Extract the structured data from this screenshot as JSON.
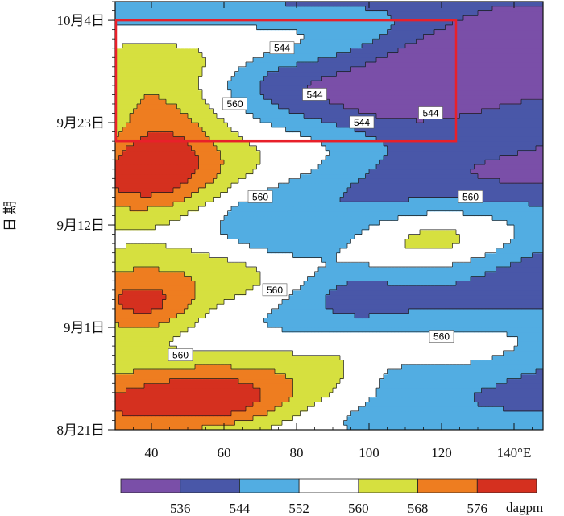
{
  "chart_data": {
    "type": "heatmap",
    "title": "",
    "xlabel": "",
    "ylabel": "日 期",
    "x_ticks": [
      {
        "value": 40,
        "label": "40"
      },
      {
        "value": 60,
        "label": "60"
      },
      {
        "value": 80,
        "label": "80"
      },
      {
        "value": 100,
        "label": "100"
      },
      {
        "value": 120,
        "label": "120"
      },
      {
        "value": 140,
        "label": "140°E"
      }
    ],
    "xlim": [
      30,
      148
    ],
    "y_ticks": [
      {
        "value": "08-21",
        "label": "8月21日"
      },
      {
        "value": "09-01",
        "label": "9月1日"
      },
      {
        "value": "09-12",
        "label": "9月12日"
      },
      {
        "value": "09-23",
        "label": "9月23日"
      },
      {
        "value": "10-04",
        "label": "10月4日"
      }
    ],
    "ylim": [
      "08-21",
      "10-06"
    ],
    "colorbar": {
      "unit": "dagpm",
      "levels": [
        528,
        536,
        544,
        552,
        560,
        568,
        576,
        584
      ],
      "tick_labels": [
        "536",
        "544",
        "552",
        "560",
        "568",
        "576"
      ],
      "colors": [
        "#7a4fa8",
        "#4957a8",
        "#52ade2",
        "#ffffff",
        "#d6e03f",
        "#ee7d20",
        "#d5301f"
      ]
    },
    "contour_labels": [
      {
        "lon": 98,
        "date": "09-23",
        "text": "544"
      },
      {
        "lon": 85,
        "date": "09-26",
        "text": "544"
      },
      {
        "lon": 76,
        "date": "10-01",
        "text": "544"
      },
      {
        "lon": 117,
        "date": "09-24",
        "text": "544"
      },
      {
        "lon": 63,
        "date": "09-25",
        "text": "560"
      },
      {
        "lon": 70,
        "date": "09-15",
        "text": "560"
      },
      {
        "lon": 128,
        "date": "09-15",
        "text": "560"
      },
      {
        "lon": 74,
        "date": "09-05",
        "text": "560"
      },
      {
        "lon": 120,
        "date": "08-31",
        "text": "560"
      },
      {
        "lon": 48,
        "date": "08-29",
        "text": "560"
      }
    ],
    "highlight_box": {
      "lon_min": 30,
      "lon_max": 124,
      "date_min": "09-21",
      "date_max": "10-04",
      "color": "#e8202a"
    },
    "grid": false
  }
}
